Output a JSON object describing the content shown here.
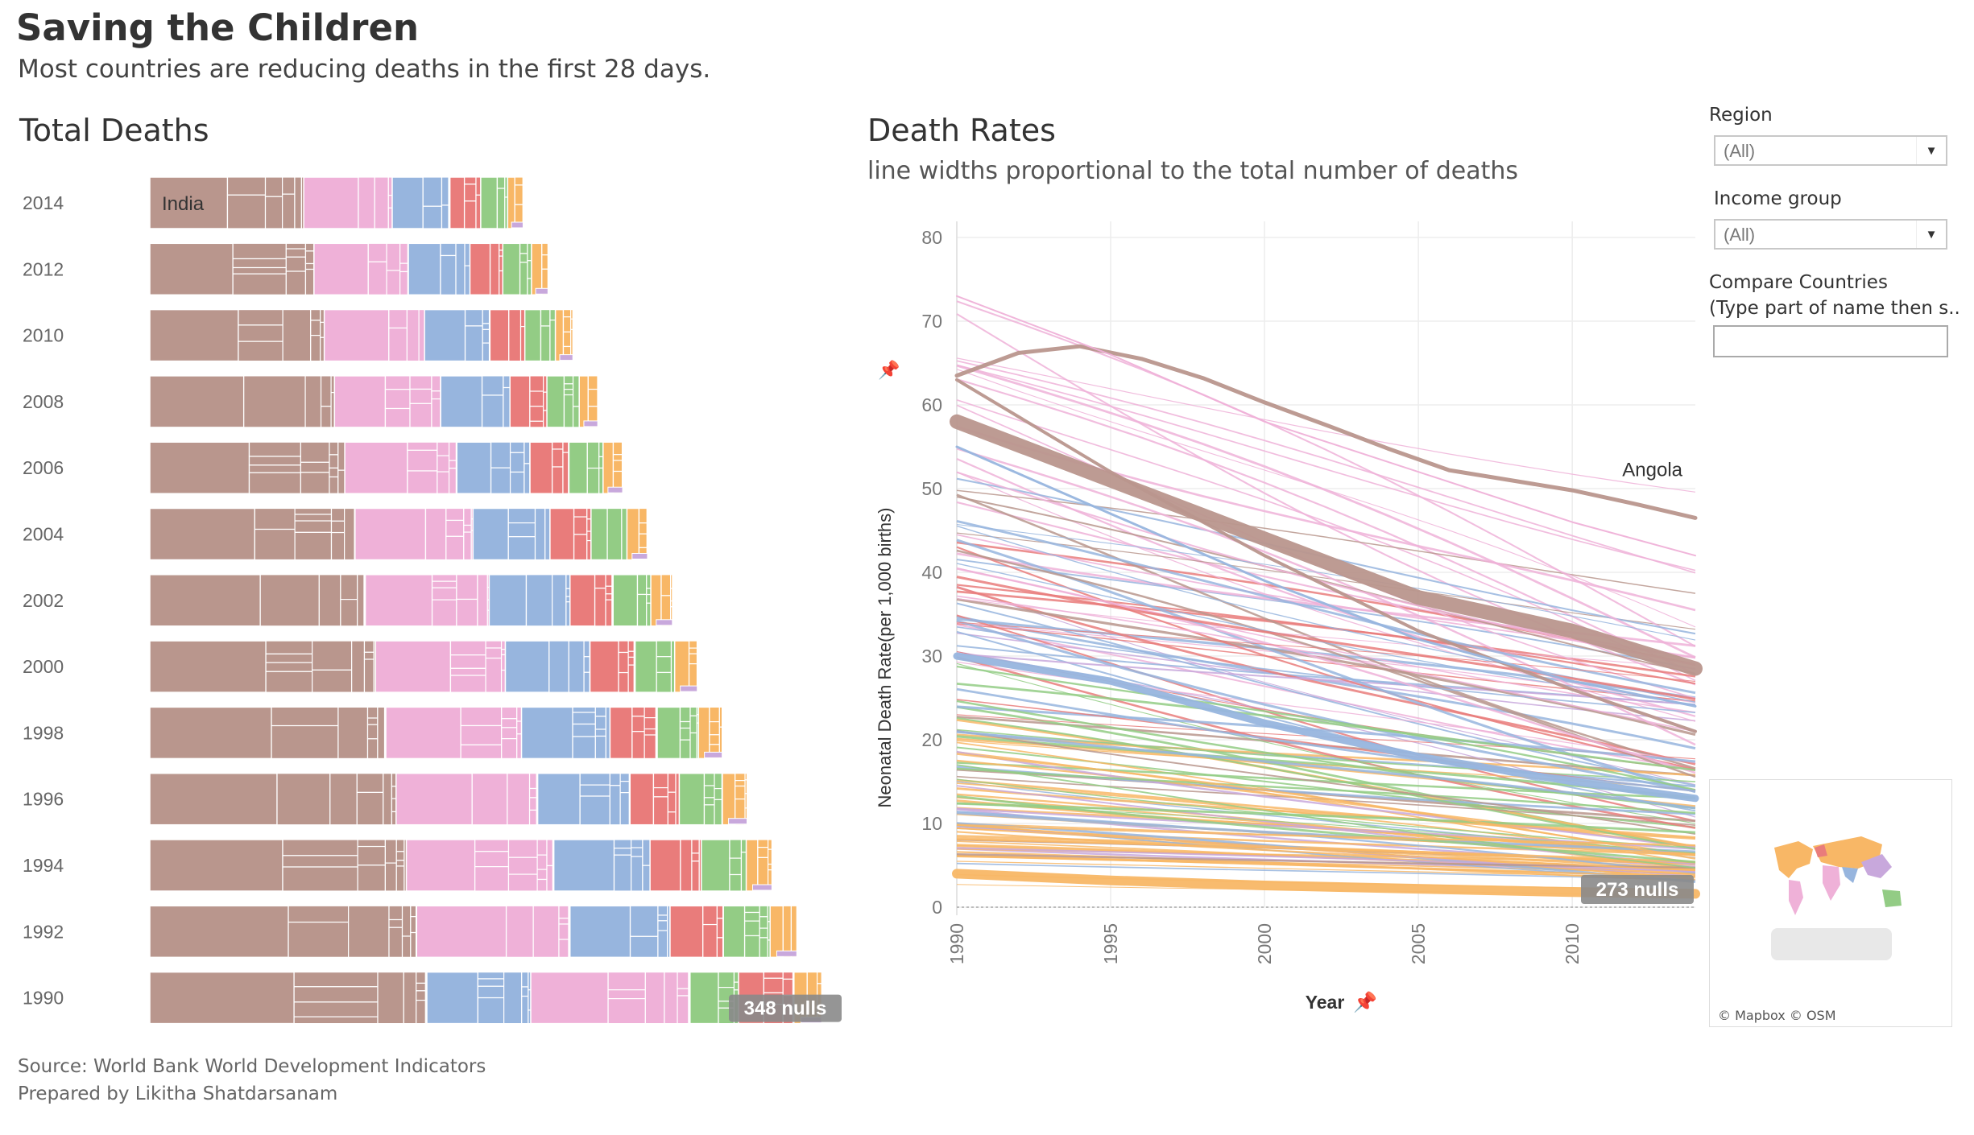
{
  "header": {
    "title": "Saving the Children",
    "subtitle": "Most countries are reducing deaths in the first 28 days."
  },
  "footer": {
    "source": "Source: World Bank World Development Indicators",
    "prepared": "Prepared by  Likitha Shatdarsanam"
  },
  "filters": {
    "region_label": "Region",
    "region_value": "(All)",
    "income_label": "Income group",
    "income_value": "(All)",
    "compare_label_1": "Compare Countries",
    "compare_label_2": "(Type part of name then s..",
    "compare_value": ""
  },
  "map": {
    "credit": "© Mapbox © OSM"
  },
  "colors": {
    "asia_brown": "#b9968d",
    "africa_pink": "#efb1d8",
    "south_asia_blue": "#97b5de",
    "green": "#93cc85",
    "red": "#e97c7b",
    "orange": "#f8b766",
    "purple": "#c8a8dc"
  },
  "chart_data": [
    {
      "type": "treemap-bars",
      "title": "Total Deaths",
      "categories": [
        "2014",
        "2012",
        "2010",
        "2008",
        "2006",
        "2004",
        "2002",
        "2000",
        "1998",
        "1996",
        "1994",
        "1992",
        "1990"
      ],
      "values": [
        0.6,
        0.64,
        0.68,
        0.72,
        0.76,
        0.8,
        0.84,
        0.88,
        0.92,
        0.96,
        1.0,
        1.04,
        1.08
      ],
      "segment_order": [
        "asia_brown",
        "africa_pink",
        "south_asia_blue",
        "red",
        "green",
        "orange",
        "purple"
      ],
      "label_2014": "India",
      "nulls_badge": "348 nulls"
    },
    {
      "type": "line",
      "title": "Death Rates",
      "subtitle": "line widths proportional to the total number of deaths",
      "xlabel": "Year",
      "ylabel": "Neonatal Death Rate(per 1,000 births)",
      "x_ticks": [
        "1990",
        "1995",
        "2000",
        "2005",
        "2010"
      ],
      "y_ticks": [
        "0",
        "10",
        "20",
        "30",
        "40",
        "50",
        "60",
        "70",
        "80"
      ],
      "xlim": [
        1990,
        2014
      ],
      "ylim": [
        0,
        80
      ],
      "annotation": "Angola",
      "nulls_badge": "273 nulls",
      "highlighted_series": [
        {
          "label": "Angola",
          "color": "#b9968d",
          "x": [
            1990,
            1992,
            1994,
            1996,
            1998,
            2000,
            2002,
            2004,
            2006,
            2008,
            2010,
            2012,
            2014
          ],
          "y": [
            63.5,
            66.2,
            67.0,
            65.5,
            63.2,
            60.3,
            57.6,
            54.8,
            52.2,
            51.0,
            49.8,
            48.2,
            46.5
          ],
          "width": 5
        },
        {
          "color": "#b9968d",
          "x": [
            1990,
            1995,
            2000,
            2005,
            2010,
            2014
          ],
          "y": [
            58,
            51,
            44,
            37,
            33,
            28.5
          ],
          "width": 18
        },
        {
          "color": "#b9968d",
          "x": [
            1990,
            1995,
            2000,
            2005,
            2010,
            2014
          ],
          "y": [
            63,
            52,
            42,
            33,
            26,
            21
          ],
          "width": 4
        },
        {
          "color": "#97b5de",
          "x": [
            1990,
            1995,
            2000,
            2005,
            2010,
            2014
          ],
          "y": [
            30,
            27,
            22,
            18,
            15,
            13
          ],
          "width": 9
        },
        {
          "color": "#97b5de",
          "x": [
            1990,
            1995,
            2000,
            2005,
            2010,
            2014
          ],
          "y": [
            55,
            47,
            39,
            32,
            27,
            24
          ],
          "width": 3
        },
        {
          "color": "#efb1d8",
          "x": [
            1990,
            1995,
            2000,
            2005,
            2010,
            2014
          ],
          "y": [
            73,
            66,
            58,
            52,
            46,
            42
          ],
          "width": 2
        },
        {
          "color": "#f8b766",
          "x": [
            1990,
            1995,
            2000,
            2005,
            2010,
            2014
          ],
          "y": [
            4,
            3.2,
            2.6,
            2.2,
            1.8,
            1.6
          ],
          "width": 12
        }
      ],
      "background_series_count": 140
    }
  ]
}
